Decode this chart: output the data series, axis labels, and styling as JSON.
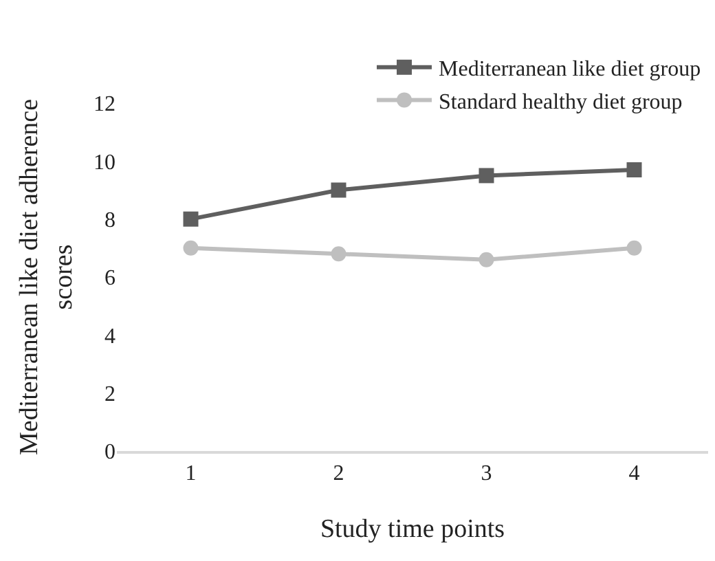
{
  "chart_data": {
    "type": "line",
    "xlabel": "Study time points",
    "ylabel": "Mediterranean like diet adherence\nscores",
    "categories": [
      "1",
      "2",
      "3",
      "4"
    ],
    "series": [
      {
        "name": "Mediterranean like diet group",
        "color": "#5f5f5f",
        "marker": "square",
        "values": [
          8.0,
          9.0,
          9.5,
          9.7
        ]
      },
      {
        "name": "Standard healthy diet group",
        "color": "#bfbfbf",
        "marker": "circle",
        "values": [
          7.0,
          6.8,
          6.6,
          7.0
        ]
      }
    ],
    "ylim": [
      0,
      12
    ],
    "yticks": [
      0,
      2,
      4,
      6,
      8,
      10,
      12
    ],
    "grid": false,
    "legend": "top right",
    "line_style": "solid"
  }
}
